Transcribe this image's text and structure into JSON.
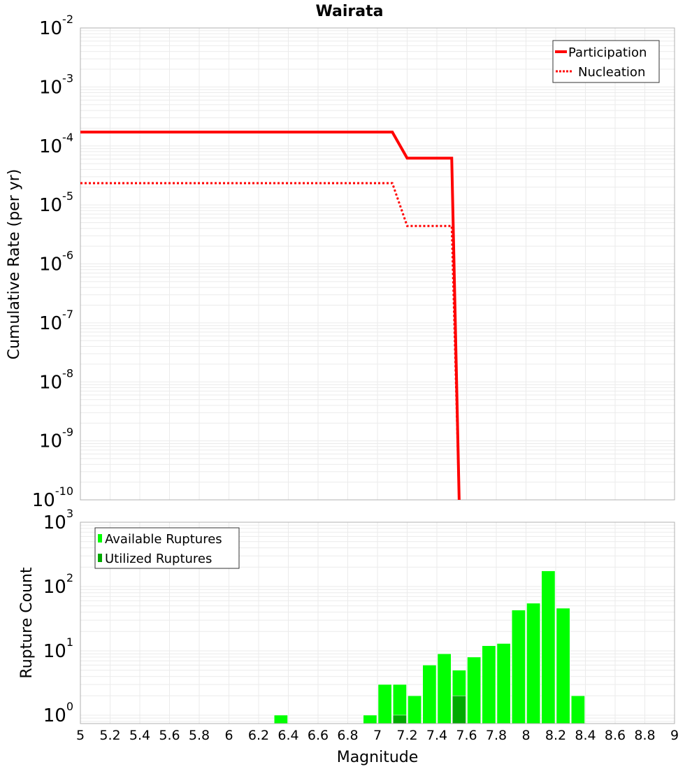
{
  "chart_data": [
    {
      "type": "line",
      "title": "Wairata",
      "xlabel": "",
      "ylabel": "Cumulative Rate (per yr)",
      "xlim": [
        5,
        9
      ],
      "ylim": [
        1e-10,
        0.01
      ],
      "yscale": "log",
      "grid": true,
      "legend_position": "top-right",
      "y_tick_exponents": [
        "-2",
        "-3",
        "-4",
        "-5",
        "-6",
        "-7",
        "-8",
        "-9",
        "-10"
      ],
      "series": [
        {
          "name": "Participation",
          "style": "solid",
          "color": "#ff0000",
          "x": [
            5.0,
            7.1,
            7.2,
            7.5,
            7.55
          ],
          "y": [
            0.000172,
            0.000172,
            6.2e-05,
            6.2e-05,
            1e-10
          ]
        },
        {
          "name": "Nucleation",
          "style": "dotted",
          "color": "#ff0000",
          "x": [
            5.0,
            7.1,
            7.2,
            7.5,
            7.55
          ],
          "y": [
            2.34e-05,
            2.34e-05,
            4.4e-06,
            4.4e-06,
            1e-10
          ]
        }
      ]
    },
    {
      "type": "bar",
      "xlabel": "Magnitude",
      "ylabel": "Rupture Count",
      "xlim": [
        5,
        9
      ],
      "ylim": [
        0.74,
        1000
      ],
      "yscale": "log",
      "grid": true,
      "legend_position": "top-left",
      "x_ticks": [
        "5",
        "5.2",
        "5.4",
        "5.6",
        "5.8",
        "6",
        "6.2",
        "6.4",
        "6.6",
        "6.8",
        "7",
        "7.2",
        "7.4",
        "7.6",
        "7.8",
        "8",
        "8.2",
        "8.4",
        "8.6",
        "8.8",
        "9"
      ],
      "y_tick_exponents": [
        "3",
        "2",
        "1",
        "0"
      ],
      "bin_width": 0.1,
      "series": [
        {
          "name": "Available Ruptures",
          "color": "#00ff00",
          "x": [
            6.35,
            6.95,
            7.05,
            7.15,
            7.25,
            7.35,
            7.45,
            7.55,
            7.65,
            7.75,
            7.85,
            7.95,
            8.05,
            8.15,
            8.25,
            8.35
          ],
          "values": [
            1,
            1,
            3,
            3,
            2,
            6,
            9,
            5,
            8,
            12,
            13,
            43,
            55,
            175,
            46,
            2
          ]
        },
        {
          "name": "Utilized Ruptures",
          "color": "#00aa00",
          "x": [
            7.15,
            7.55
          ],
          "values": [
            1,
            2
          ]
        }
      ]
    }
  ]
}
